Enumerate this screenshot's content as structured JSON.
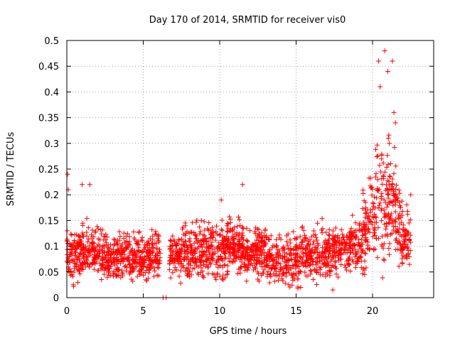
{
  "chart_data": {
    "type": "scatter",
    "title": "Day 170 of 2014, SRMTID for receiver vis0",
    "xlabel": "GPS time / hours",
    "ylabel": "SRMTID / TECUs",
    "xlim": [
      0,
      24
    ],
    "ylim": [
      0,
      0.5
    ],
    "x_ticks": [
      0,
      5,
      10,
      15,
      20
    ],
    "y_ticks": [
      0,
      0.05,
      0.1,
      0.15,
      0.2,
      0.25,
      0.3,
      0.35,
      0.4,
      0.45,
      0.5
    ],
    "x_tick_labels": [
      "0",
      "5",
      "10",
      "15",
      "20"
    ],
    "y_tick_labels": [
      "0",
      "0.05",
      "0.1",
      "0.15",
      "0.2",
      "0.25",
      "0.3",
      "0.35",
      "0.4",
      "0.45",
      "0.5"
    ],
    "grid": true,
    "marker": "plus",
    "series_color": "#ff0000",
    "envelope": {
      "description": "dense scatter; typical value and spread per hour (estimated)",
      "hours": [
        0,
        0.5,
        1,
        1.5,
        2,
        3,
        4,
        5,
        6,
        6.5,
        7,
        8,
        9,
        10,
        11,
        12,
        13,
        14,
        15,
        16,
        17,
        18,
        19,
        19.5,
        20,
        20.5,
        21,
        21.5,
        22,
        22.5
      ],
      "mean": [
        0.09,
        0.08,
        0.085,
        0.09,
        0.09,
        0.075,
        0.08,
        0.08,
        0.08,
        0.075,
        0.08,
        0.085,
        0.095,
        0.09,
        0.1,
        0.085,
        0.085,
        0.07,
        0.075,
        0.085,
        0.09,
        0.095,
        0.1,
        0.13,
        0.17,
        0.2,
        0.18,
        0.17,
        0.11,
        0.12
      ],
      "spread": [
        0.04,
        0.03,
        0.035,
        0.035,
        0.035,
        0.03,
        0.03,
        0.03,
        0.03,
        0.03,
        0.03,
        0.035,
        0.035,
        0.035,
        0.035,
        0.03,
        0.035,
        0.03,
        0.035,
        0.035,
        0.035,
        0.03,
        0.035,
        0.05,
        0.07,
        0.09,
        0.09,
        0.07,
        0.035,
        0.04
      ]
    },
    "notable_points": [
      {
        "x": 0.05,
        "y": 0.24
      },
      {
        "x": 0.1,
        "y": 0.21
      },
      {
        "x": 1.0,
        "y": 0.22
      },
      {
        "x": 1.5,
        "y": 0.22
      },
      {
        "x": 8.8,
        "y": 0.15
      },
      {
        "x": 10.1,
        "y": 0.19
      },
      {
        "x": 11.5,
        "y": 0.22
      },
      {
        "x": 20.4,
        "y": 0.46
      },
      {
        "x": 20.5,
        "y": 0.41
      },
      {
        "x": 20.8,
        "y": 0.48
      },
      {
        "x": 21.0,
        "y": 0.44
      },
      {
        "x": 21.1,
        "y": 0.3
      },
      {
        "x": 21.3,
        "y": 0.46
      },
      {
        "x": 21.4,
        "y": 0.36
      },
      {
        "x": 21.5,
        "y": 0.34
      },
      {
        "x": 22.5,
        "y": 0.2
      },
      {
        "x": 6.3,
        "y": 0.0
      },
      {
        "x": 6.5,
        "y": 0.0
      },
      {
        "x": 17.4,
        "y": 0.015
      },
      {
        "x": 15.3,
        "y": 0.02
      }
    ]
  }
}
